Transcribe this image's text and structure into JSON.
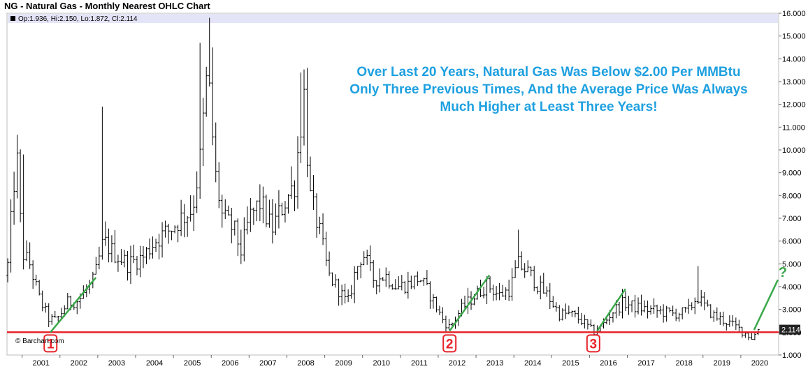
{
  "title": "NG - Natural Gas - Monthly Nearest OHLC Chart",
  "ohlc_readout": "Op:1.936, Hi:2.150, Lo:1.872, Cl:2.114",
  "last_price_label": "2.114",
  "watermark": "© Barchart.com",
  "annotation_lines": [
    "Over Last 20 Years, Natural Gas Was Below $2.00 Per MMBtu",
    "Only Three Previous Times, And the Average Price Was Always",
    "Much Higher at Least Three Years!"
  ],
  "markers": [
    {
      "label": "1",
      "x": 2001.75
    },
    {
      "label": "2",
      "x": 2012.3
    },
    {
      "label": "3",
      "x": 2016.1
    }
  ],
  "question_mark": "?",
  "colors": {
    "bars": "#000000",
    "support": "#e8232a",
    "trend": "#3aa84a",
    "annotation": "#1ea0e0",
    "header_band": "#e4e4f8"
  },
  "chart_data": {
    "type": "ohlc",
    "title": "NG - Natural Gas - Monthly Nearest OHLC Chart",
    "ylim": [
      1.0,
      16.0
    ],
    "xlim": [
      2000.6,
      2021.0
    ],
    "y_ticks": [
      "16.000",
      "15.000",
      "14.000",
      "13.000",
      "12.000",
      "11.000",
      "10.000",
      "9.000",
      "8.000",
      "7.000",
      "6.000",
      "5.000",
      "4.000",
      "3.000",
      "2.000",
      "1.000"
    ],
    "x_ticks": [
      "2001",
      "2002",
      "2003",
      "2004",
      "2005",
      "2006",
      "2007",
      "2008",
      "2009",
      "2010",
      "2011",
      "2012",
      "2013",
      "2014",
      "2015",
      "2016",
      "2017",
      "2018",
      "2019",
      "2020"
    ],
    "support_level": 2.0,
    "trend_lines": [
      {
        "x": [
          2001.75,
          2002.95
        ],
        "y": [
          2.0,
          4.4
        ]
      },
      {
        "x": [
          2012.3,
          2013.35
        ],
        "y": [
          2.05,
          4.5
        ]
      },
      {
        "x": [
          2016.2,
          2016.95
        ],
        "y": [
          2.05,
          3.9
        ]
      },
      {
        "x": [
          2020.35,
          2020.98
        ],
        "y": [
          2.1,
          4.3
        ]
      }
    ],
    "anchors": [
      [
        2000.6,
        4.5
      ],
      [
        2000.85,
        10.0
      ],
      [
        2001.0,
        5.5
      ],
      [
        2001.2,
        5.0
      ],
      [
        2001.45,
        3.5
      ],
      [
        2001.7,
        2.6
      ],
      [
        2001.9,
        2.5
      ],
      [
        2002.2,
        3.3
      ],
      [
        2002.5,
        3.4
      ],
      [
        2002.9,
        4.3
      ],
      [
        2003.15,
        6.0
      ],
      [
        2003.4,
        5.5
      ],
      [
        2003.8,
        5.0
      ],
      [
        2004.2,
        5.3
      ],
      [
        2004.5,
        6.0
      ],
      [
        2004.9,
        6.5
      ],
      [
        2005.2,
        7.0
      ],
      [
        2005.5,
        7.4
      ],
      [
        2005.7,
        9.5
      ],
      [
        2005.9,
        13.5
      ],
      [
        2006.0,
        11.5
      ],
      [
        2006.1,
        9.0
      ],
      [
        2006.3,
        7.0
      ],
      [
        2006.6,
        6.5
      ],
      [
        2006.8,
        5.5
      ],
      [
        2007.0,
        7.0
      ],
      [
        2007.3,
        7.7
      ],
      [
        2007.6,
        6.5
      ],
      [
        2007.9,
        7.6
      ],
      [
        2008.2,
        8.5
      ],
      [
        2008.45,
        12.5
      ],
      [
        2008.6,
        8.0
      ],
      [
        2008.85,
        6.5
      ],
      [
        2009.1,
        4.5
      ],
      [
        2009.4,
        3.8
      ],
      [
        2009.6,
        3.2
      ],
      [
        2009.8,
        4.6
      ],
      [
        2010.0,
        5.5
      ],
      [
        2010.3,
        4.3
      ],
      [
        2010.6,
        4.5
      ],
      [
        2010.9,
        4.0
      ],
      [
        2011.2,
        4.1
      ],
      [
        2011.5,
        4.4
      ],
      [
        2011.8,
        3.6
      ],
      [
        2012.1,
        2.6
      ],
      [
        2012.3,
        2.2
      ],
      [
        2012.6,
        3.0
      ],
      [
        2012.9,
        3.5
      ],
      [
        2013.3,
        4.1
      ],
      [
        2013.6,
        3.6
      ],
      [
        2013.9,
        3.9
      ],
      [
        2014.1,
        5.0
      ],
      [
        2014.4,
        4.6
      ],
      [
        2014.7,
        3.9
      ],
      [
        2014.9,
        3.6
      ],
      [
        2015.2,
        2.8
      ],
      [
        2015.5,
        2.8
      ],
      [
        2015.8,
        2.5
      ],
      [
        2016.1,
        2.0
      ],
      [
        2016.3,
        2.2
      ],
      [
        2016.6,
        2.9
      ],
      [
        2016.9,
        3.3
      ],
      [
        2017.2,
        3.1
      ],
      [
        2017.5,
        3.0
      ],
      [
        2017.9,
        2.9
      ],
      [
        2018.2,
        2.8
      ],
      [
        2018.6,
        2.9
      ],
      [
        2018.85,
        3.6
      ],
      [
        2019.0,
        3.2
      ],
      [
        2019.3,
        2.7
      ],
      [
        2019.7,
        2.4
      ],
      [
        2020.0,
        2.1
      ],
      [
        2020.3,
        1.75
      ],
      [
        2020.4,
        1.95
      ],
      [
        2020.46,
        2.11
      ]
    ],
    "spikes": [
      [
        2000.88,
        10.1
      ],
      [
        2001.0,
        9.8
      ],
      [
        2003.15,
        11.9
      ],
      [
        2005.67,
        14.7
      ],
      [
        2005.92,
        15.8
      ],
      [
        2006.0,
        14.5
      ],
      [
        2008.5,
        13.6
      ],
      [
        2008.4,
        13.4
      ],
      [
        2014.1,
        6.5
      ],
      [
        2018.85,
        4.9
      ]
    ],
    "last_bar": {
      "open": 1.936,
      "high": 2.15,
      "low": 1.872,
      "close": 2.114
    }
  }
}
